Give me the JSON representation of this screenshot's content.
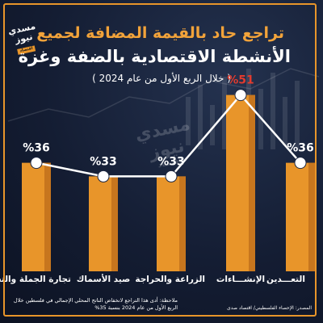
{
  "header": {
    "title_line1": "تراجع حاد بالقيمة المضافة لجميع",
    "title_line2": "الأنشطة الاقتصادية بالضفة وغزة",
    "subtitle": "( خلال الربع الأول من عام 2024 )"
  },
  "logo": {
    "text": "مسدي نيوز",
    "sub": "اقتصاد"
  },
  "watermark": {
    "text": "مسدي نيوز",
    "sub": "اقتصاد"
  },
  "chart_data": {
    "type": "bar",
    "categories": [
      "تجارة الجملة والتجزئة",
      "صيد الأسماك",
      "الزراعة والحراجة",
      "الإنشـــاءات",
      "التعـــدين"
    ],
    "values": [
      36,
      33,
      33,
      51,
      36
    ],
    "data_labels": [
      "%36",
      "%33",
      "%33",
      "%51",
      "%36"
    ],
    "unit": "%",
    "line_overlay": true,
    "highlight_index": 3,
    "colors": {
      "bar": "#e8952a",
      "bar_dark": "#b9691a",
      "label": "#ffffff",
      "highlight_label": "#e23b2e",
      "line": "#ffffff",
      "marker": "#ffffff"
    },
    "title": "",
    "xlabel": "",
    "ylabel": ""
  },
  "footer": {
    "note": "ملاحظة: أدى هذا التراجع لانخفاض الناتج المحلي الإجمالي في فلسطين خلال الربع الأول من عام 2024 بنسبة 35%",
    "source": "المصدر: الإحصاء الفلسطيني/ اقتصاد صدى"
  }
}
